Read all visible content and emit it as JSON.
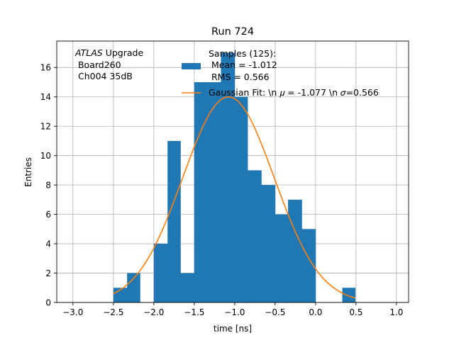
{
  "chart_data": {
    "type": "bar",
    "title": "Run 724",
    "xlabel": "time [ns]",
    "ylabel": "Entries",
    "xlim": [
      -3.2,
      1.15
    ],
    "ylim": [
      0,
      17.8
    ],
    "x_ticks": [
      -3.0,
      -2.5,
      -2.0,
      -1.5,
      -1.0,
      -0.5,
      0.0,
      0.5,
      1.0
    ],
    "x_tick_labels": [
      "−3.0",
      "−2.5",
      "−2.0",
      "−1.5",
      "−1.0",
      "−0.5",
      "0.0",
      "0.5",
      "1.0"
    ],
    "y_ticks": [
      0,
      2,
      4,
      6,
      8,
      10,
      12,
      14,
      16
    ],
    "grid": true,
    "bar_color": "#1f77b4",
    "fit_color": "#ff7f0e",
    "histogram": {
      "bin_edges": [
        -2.5,
        -2.33,
        -2.17,
        -2.0,
        -1.83,
        -1.67,
        -1.5,
        -1.34,
        -1.17,
        -1.0,
        -0.84,
        -0.67,
        -0.5,
        -0.34,
        -0.17,
        0.0,
        0.16,
        0.33,
        0.49
      ],
      "counts": [
        1,
        2,
        0,
        4,
        11,
        2,
        15,
        15,
        17,
        14,
        9,
        8,
        6,
        7,
        5,
        0,
        0,
        1
      ]
    },
    "gaussian_fit": {
      "mu": -1.077,
      "sigma": 0.566,
      "amplitude": 14.0,
      "x_range": [
        -2.5,
        0.49
      ]
    },
    "annotation": {
      "line1_italic": "ATLAS",
      "line1_rest": " Upgrade",
      "line2": " Board260",
      "line3": " Ch004 35dB"
    },
    "legend": {
      "placement": "top-right",
      "hist_label_lines": [
        "Samples (125):",
        " Mean = -1.012",
        " RMS = 0.566"
      ],
      "fit_label": "Gaussian Fit: \\n 𝜇 = -1.077 \\n 𝜎=0.566"
    }
  }
}
